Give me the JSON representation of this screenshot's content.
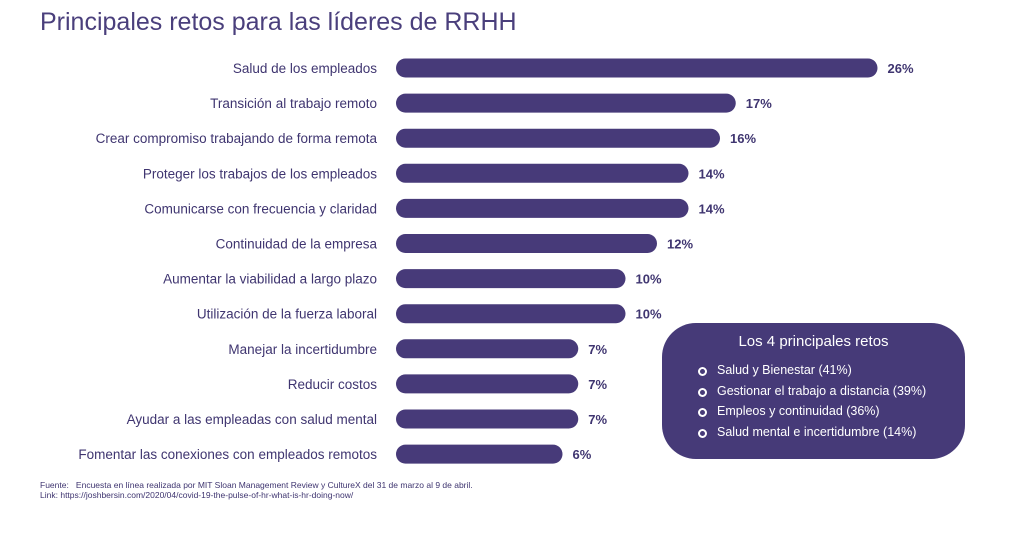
{
  "chart_data": {
    "type": "bar",
    "orientation": "horizontal",
    "title": "Principales retos para las líderes de RRHH",
    "categories": [
      "Salud de los empleados",
      "Transición al trabajo remoto",
      "Crear compromiso trabajando de forma remota",
      "Proteger los trabajos de los empleados",
      "Comunicarse con frecuencia y claridad",
      "Continuidad de la empresa",
      "Aumentar la viabilidad a largo plazo",
      "Utilización de la fuerza laboral",
      "Manejar la incertidumbre",
      "Reducir costos",
      "Ayudar a las empleadas con salud mental",
      "Fomentar las conexiones con empleados remotos"
    ],
    "values": [
      26,
      17,
      16,
      14,
      14,
      12,
      10,
      10,
      7,
      7,
      7,
      6
    ],
    "value_suffix": "%",
    "bar_color": "#473a79",
    "grid": false
  },
  "callout": {
    "title": "Los 4 principales retos",
    "items": [
      "Salud y Bienestar (41%)",
      "Gestionar el trabajo a distancia (39%)",
      "Empleos y continuidad (36%)",
      "Salud mental e incertidumbre (14%)"
    ]
  },
  "footer": {
    "source_label": "Fuente:",
    "source_text": "Encuesta en línea realizada por MIT Sloan Management Review y CultureX del 31 de marzo al 9 de abril.",
    "link_label": "Link:",
    "link_url": "https://joshbersin.com/2020/04/covid-19-the-pulse-of-hr-what-is-hr-doing-now/"
  }
}
